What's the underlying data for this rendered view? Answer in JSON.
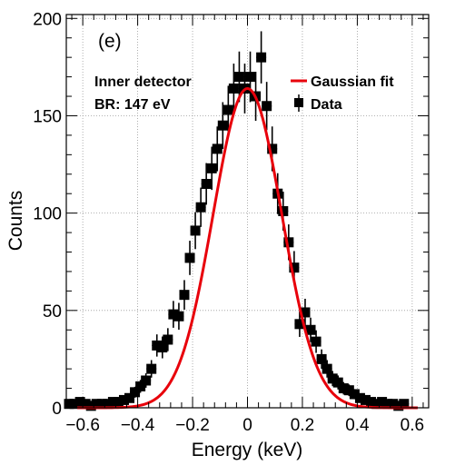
{
  "chart_data": {
    "type": "scatter",
    "panel_label": "(e)",
    "annotations": [
      "Inner detector",
      "BR: 147 eV"
    ],
    "xlabel": "Energy (keV)",
    "ylabel": "Counts",
    "xlim": [
      -0.66,
      0.66
    ],
    "ylim": [
      0,
      202
    ],
    "x_ticks": [
      -0.6,
      -0.4,
      -0.2,
      0,
      0.2,
      0.4,
      0.6
    ],
    "x_tick_labels": [
      "−0.6",
      "−0.4",
      "−0.2",
      "0",
      "0.2",
      "0.4",
      "0.6"
    ],
    "y_ticks": [
      0,
      50,
      100,
      150,
      200
    ],
    "y_tick_labels": [
      "0",
      "50",
      "100",
      "150",
      "200"
    ],
    "grid": true,
    "legend_position": "top-right",
    "series": [
      {
        "name": "Data",
        "kind": "points-with-errorbars",
        "color": "#000000",
        "x": [
          -0.65,
          -0.63,
          -0.61,
          -0.59,
          -0.57,
          -0.55,
          -0.53,
          -0.51,
          -0.49,
          -0.47,
          -0.45,
          -0.43,
          -0.41,
          -0.39,
          -0.37,
          -0.35,
          -0.33,
          -0.31,
          -0.29,
          -0.27,
          -0.25,
          -0.23,
          -0.21,
          -0.19,
          -0.17,
          -0.15,
          -0.13,
          -0.11,
          -0.09,
          -0.07,
          -0.05,
          -0.03,
          -0.01,
          0.01,
          0.03,
          0.05,
          0.07,
          0.09,
          0.11,
          0.13,
          0.15,
          0.17,
          0.19,
          0.21,
          0.23,
          0.25,
          0.27,
          0.29,
          0.31,
          0.33,
          0.35,
          0.37,
          0.39,
          0.41,
          0.43,
          0.45,
          0.47,
          0.49,
          0.51,
          0.53,
          0.55,
          0.57
        ],
        "y": [
          2,
          2,
          3,
          2,
          1,
          2,
          2,
          2,
          3,
          3,
          4,
          5,
          8,
          11,
          14,
          20,
          32,
          31,
          35,
          48,
          47,
          58,
          77,
          91,
          103,
          115,
          123,
          133,
          145,
          153,
          164,
          170,
          164,
          170,
          160,
          180,
          155,
          133,
          110,
          101,
          85,
          72,
          43,
          49,
          40,
          34,
          25,
          20,
          15,
          13,
          10,
          9,
          7,
          5,
          4,
          3,
          2,
          3,
          2,
          2,
          1,
          2
        ],
        "err": [
          1.4,
          1.4,
          1.7,
          1.4,
          1,
          1.4,
          1.4,
          1.4,
          1.7,
          1.7,
          2,
          2.2,
          2.8,
          3.3,
          3.7,
          4.5,
          5.7,
          5.6,
          5.9,
          6.9,
          6.9,
          7.6,
          8.8,
          9.5,
          10.1,
          10.7,
          11.1,
          11.5,
          12,
          12.4,
          12.8,
          13,
          12.8,
          13,
          12.6,
          13.4,
          12.4,
          11.5,
          10.5,
          10,
          9.2,
          8.5,
          6.6,
          7,
          6.3,
          5.8,
          5,
          4.5,
          3.9,
          3.6,
          3.2,
          3,
          2.6,
          2.2,
          2,
          1.7,
          1.4,
          1.7,
          1.4,
          1.4,
          1,
          1.4
        ]
      },
      {
        "name": "Gaussian fit",
        "kind": "line",
        "color": "#e8000b",
        "peak": 164,
        "mean": 0.0,
        "sigma": 0.125,
        "x_range": [
          -0.62,
          0.62
        ]
      }
    ]
  }
}
